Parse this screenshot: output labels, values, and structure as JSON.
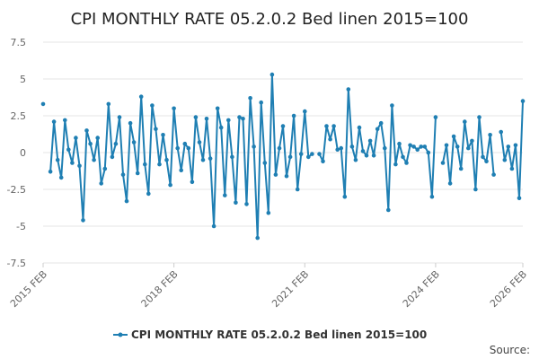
{
  "chart_data": {
    "type": "line",
    "title": "CPI MONTHLY RATE 05.2.0.2 Bed linen 2015=100",
    "xlabel": "",
    "ylabel": "",
    "source_label": "Source:",
    "y_ticks": [
      "7.5",
      "5",
      "2.5",
      "0",
      "-2.5",
      "-5",
      "-7.5"
    ],
    "ylim": [
      -7.5,
      7.5
    ],
    "x_ticks": [
      {
        "label": "2015 FEB",
        "x": 0
      },
      {
        "label": "2018 FEB",
        "x": 36
      },
      {
        "label": "2021 FEB",
        "x": 72
      },
      {
        "label": "2024 FEB",
        "x": 108
      },
      {
        "label": "2026 FEB",
        "x": 132
      }
    ],
    "xlim": [
      0,
      132
    ],
    "grid": true,
    "legend_position": "bottom-center",
    "colors": {
      "series": "#1f7fb3",
      "grid": "#e6e6e6"
    },
    "series": [
      {
        "name": "CPI MONTHLY RATE 05.2.0.2 Bed linen 2015=100",
        "values": [
          3.3,
          null,
          -1.3,
          2.1,
          -0.5,
          -1.7,
          2.2,
          0.2,
          -0.7,
          1.0,
          -0.9,
          -4.6,
          1.5,
          0.6,
          -0.5,
          1.0,
          -2.1,
          -1.1,
          3.3,
          -0.3,
          0.6,
          2.4,
          -1.5,
          -3.3,
          2.0,
          0.7,
          -1.4,
          3.8,
          -0.8,
          -2.8,
          3.2,
          1.6,
          -0.8,
          1.2,
          -0.5,
          -2.2,
          3.0,
          0.3,
          -1.2,
          0.6,
          0.3,
          -2.0,
          2.4,
          0.7,
          -0.5,
          2.3,
          -0.4,
          -5.0,
          3.0,
          1.7,
          -2.9,
          2.2,
          -0.3,
          -3.4,
          2.4,
          2.3,
          -3.5,
          3.7,
          0.4,
          -5.8,
          3.4,
          -0.7,
          -4.1,
          5.3,
          -1.5,
          0.3,
          1.8,
          -1.6,
          -0.3,
          2.5,
          -2.5,
          -0.1,
          2.8,
          -0.3,
          -0.1,
          null,
          -0.1,
          -0.6,
          1.8,
          0.9,
          1.8,
          0.2,
          0.3,
          -3.0,
          4.3,
          0.4,
          -0.5,
          1.7,
          0.1,
          -0.2,
          0.8,
          -0.2,
          1.6,
          2.0,
          0.3,
          -3.9,
          3.2,
          -0.8,
          0.6,
          -0.3,
          -0.7,
          0.5,
          0.4,
          0.2,
          0.4,
          0.4,
          0.0,
          -3.0,
          2.4,
          null,
          -0.7,
          0.5,
          -2.1,
          1.1,
          0.4,
          -1.1,
          2.1,
          0.3,
          0.8,
          -2.5,
          2.4,
          -0.3,
          -0.6,
          1.2,
          -1.5,
          null,
          1.4,
          -0.5,
          0.4,
          -1.1,
          0.5,
          -3.1,
          3.5
        ]
      }
    ]
  }
}
